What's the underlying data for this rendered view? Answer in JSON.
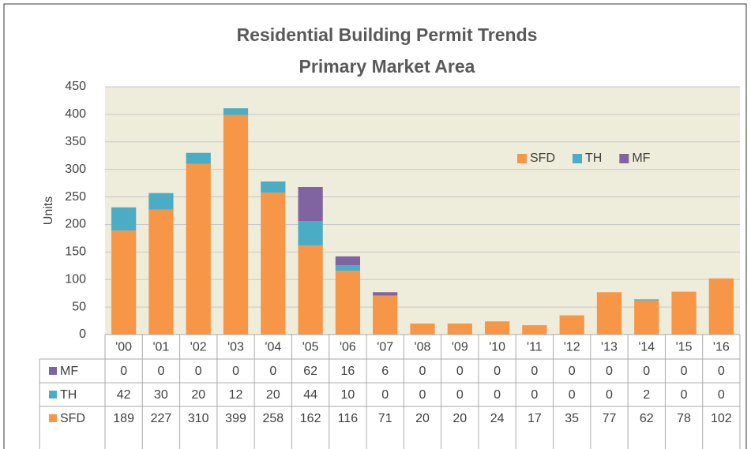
{
  "chart_data": {
    "type": "bar",
    "stacked": true,
    "title": [
      "Residential Building Permit Trends",
      "Primary Market Area"
    ],
    "ylabel": "Units",
    "categories": [
      "'00",
      "'01",
      "'02",
      "'03",
      "'04",
      "'05",
      "'06",
      "'07",
      "'08",
      "'09",
      "'10",
      "'11",
      "'12",
      "'13",
      "'14",
      "'15",
      "'16"
    ],
    "series": [
      {
        "name": "SFD",
        "color": "#f79646",
        "values": [
          189,
          227,
          310,
          399,
          258,
          162,
          116,
          71,
          20,
          20,
          24,
          17,
          35,
          77,
          62,
          78,
          102
        ]
      },
      {
        "name": "TH",
        "color": "#4bacc6",
        "values": [
          42,
          30,
          20,
          12,
          20,
          44,
          10,
          0,
          0,
          0,
          0,
          0,
          0,
          0,
          2,
          0,
          0
        ]
      },
      {
        "name": "MF",
        "color": "#8064a2",
        "values": [
          0,
          0,
          0,
          0,
          0,
          62,
          16,
          6,
          0,
          0,
          0,
          0,
          0,
          0,
          0,
          0,
          0
        ]
      }
    ],
    "ylim": [
      0,
      450
    ],
    "yticks": [
      0,
      50,
      100,
      150,
      200,
      250,
      300,
      350,
      400,
      450
    ],
    "grid": true,
    "legend": "upper right",
    "data_table": true
  }
}
